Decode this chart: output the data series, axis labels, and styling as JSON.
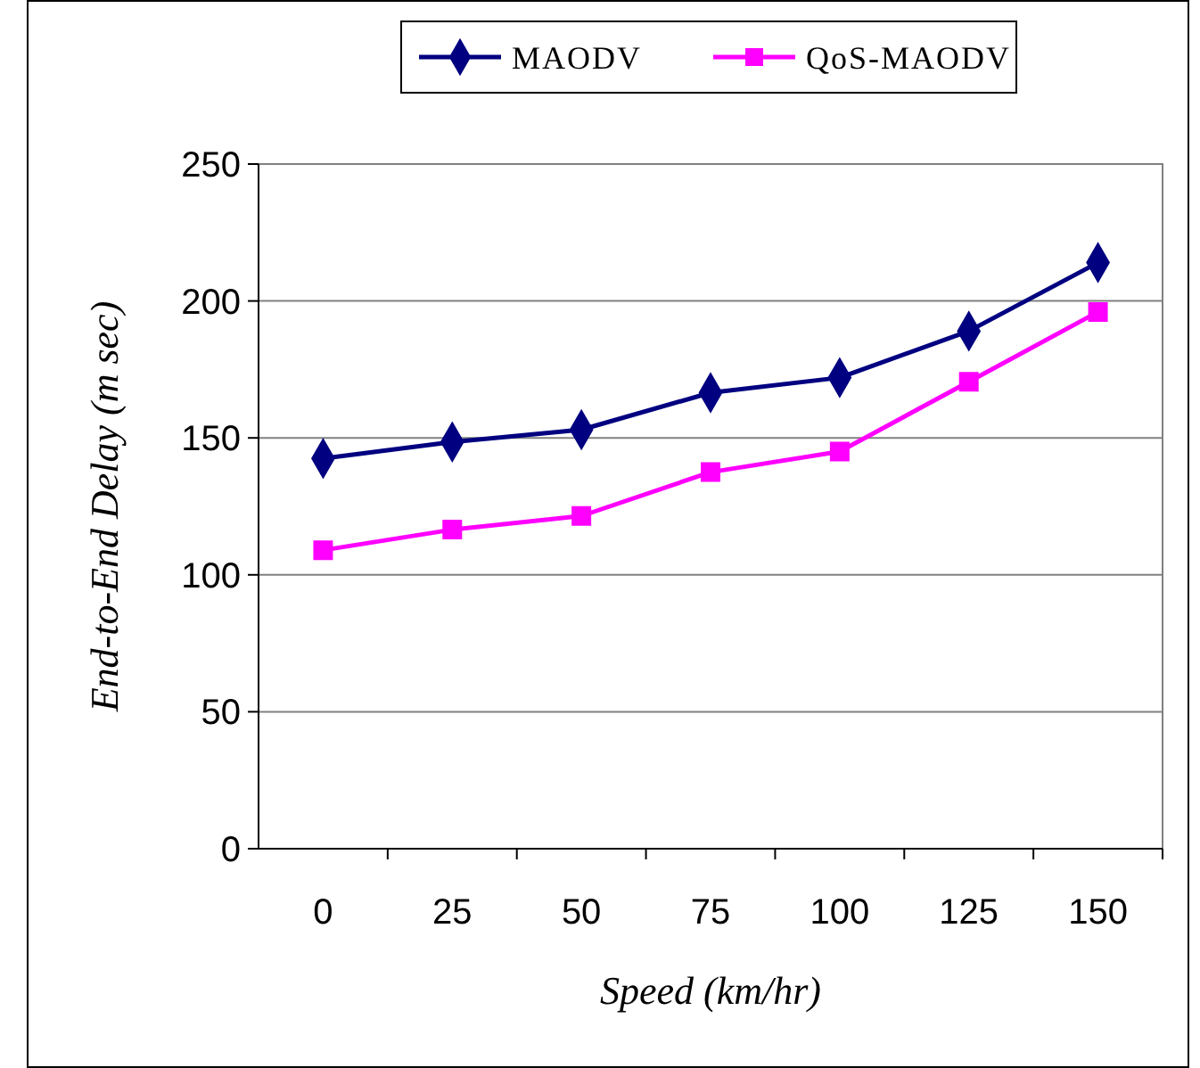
{
  "chart_data": {
    "type": "line",
    "xlabel": "Speed (km/hr)",
    "ylabel": "End-to-End Delay (m sec)",
    "categories": [
      "0",
      "25",
      "50",
      "75",
      "100",
      "125",
      "150"
    ],
    "series": [
      {
        "name": "MAODV",
        "color": "#000080",
        "marker": "diamond",
        "values": [
          142.5,
          148.5,
          153,
          166.5,
          172,
          189,
          214
        ]
      },
      {
        "name": "QoS-MAODV",
        "color": "#ff00ff",
        "marker": "square",
        "values": [
          109,
          116.5,
          121.5,
          137.5,
          145,
          170.5,
          196
        ]
      }
    ],
    "ylim": [
      0,
      250
    ],
    "yticks": [
      0,
      50,
      100,
      150,
      200,
      250
    ],
    "grid": "y",
    "legend": "top",
    "line_style": "solid"
  }
}
